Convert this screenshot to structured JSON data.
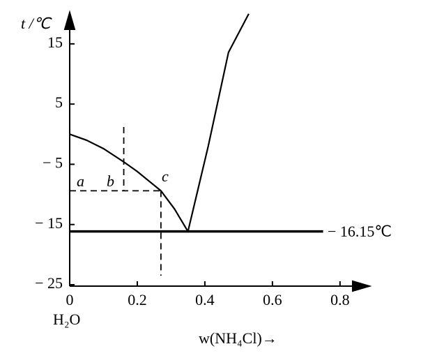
{
  "chart_data": {
    "type": "line",
    "y_label": "t /℃",
    "x_label": "w(NH₄Cl)→",
    "x_origin_label": "H₂O",
    "xlim": [
      0,
      0.887
    ],
    "ylim": [
      -25,
      20.2
    ],
    "xticks": [
      0,
      0.2,
      0.4,
      0.6,
      0.8
    ],
    "yticks": [
      15,
      5,
      {
        "value": -5,
        "label": "− 5"
      },
      {
        "value": -15,
        "label": "− 15"
      },
      {
        "value": -25,
        "label": "− 25"
      }
    ],
    "series": [
      {
        "color": "#000",
        "dash": false,
        "x": [
          0,
          0.05,
          0.1,
          0.16,
          0.2,
          0.27,
          0.31,
          0.35
        ],
        "values": [
          0,
          -1,
          -2.4,
          -4.6,
          -6.2,
          -9.4,
          -12.4,
          -16.15
        ]
      },
      {
        "color": "#000",
        "dash": false,
        "x": [
          0.35,
          0.41,
          0.47,
          0.53
        ],
        "values": [
          -16.15,
          -2,
          13.6,
          20
        ]
      },
      {
        "color": "#000",
        "dash": false,
        "x": [
          0,
          0.75
        ],
        "values": [
          -16.15,
          -16.15
        ]
      },
      {
        "color": "#000",
        "dash": true,
        "x": [
          0.16,
          0.16
        ],
        "values": [
          1.2,
          -9.4
        ]
      },
      {
        "color": "#000",
        "dash": true,
        "x": [
          0,
          0.27
        ],
        "values": [
          -9.4,
          -9.4
        ]
      },
      {
        "color": "#000",
        "dash": true,
        "x": [
          0.27,
          0.27
        ],
        "values": [
          -9.4,
          -23.5
        ]
      }
    ],
    "annotations": [
      "a",
      "b",
      "c",
      "− 16.15℃"
    ]
  }
}
